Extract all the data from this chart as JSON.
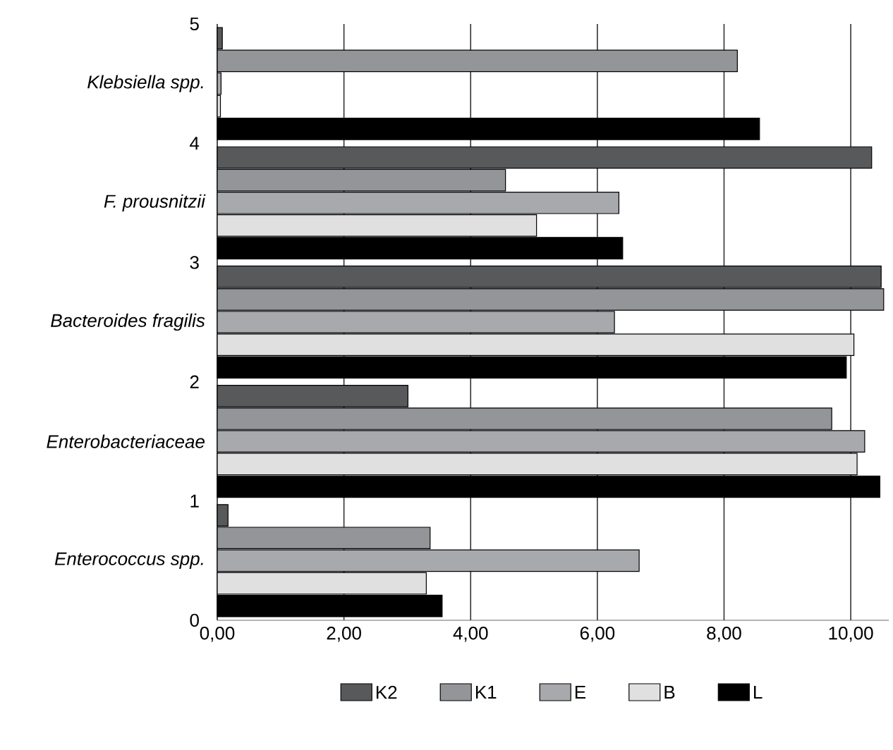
{
  "chart_data": {
    "type": "bar",
    "orientation": "horizontal",
    "categories": [
      "Klebsiella spp.",
      "F. prousnitzii",
      "Bacteroides fragilis",
      "Enterobacteriaceae",
      "Enterococcus spp."
    ],
    "series": [
      {
        "name": "K2",
        "color": "#58595b",
        "values": [
          0.08,
          10.33,
          10.48,
          3.01,
          0.17
        ]
      },
      {
        "name": "K1",
        "color": "#939598",
        "values": [
          8.21,
          4.55,
          10.52,
          9.7,
          3.36
        ]
      },
      {
        "name": "E",
        "color": "#a7a9ac",
        "values": [
          0.06,
          6.34,
          6.27,
          10.22,
          6.66
        ]
      },
      {
        "name": "B",
        "color": "#e0e0e0",
        "values": [
          0.05,
          5.04,
          10.05,
          10.1,
          3.3
        ]
      },
      {
        "name": "L",
        "color": "#000000",
        "values": [
          8.56,
          6.4,
          9.93,
          10.46,
          3.55
        ]
      }
    ],
    "xlim": [
      0,
      10.6
    ],
    "xticks": [
      {
        "value": 0,
        "label": "0,00"
      },
      {
        "value": 2,
        "label": "2,00"
      },
      {
        "value": 4,
        "label": "4,00"
      },
      {
        "value": 6,
        "label": "6,00"
      },
      {
        "value": 8,
        "label": "8,00"
      },
      {
        "value": 10,
        "label": "10,00"
      }
    ],
    "annotations": [
      "0",
      "1",
      "2",
      "3",
      "4",
      "5"
    ],
    "grid": "x",
    "legend": "bottom"
  }
}
